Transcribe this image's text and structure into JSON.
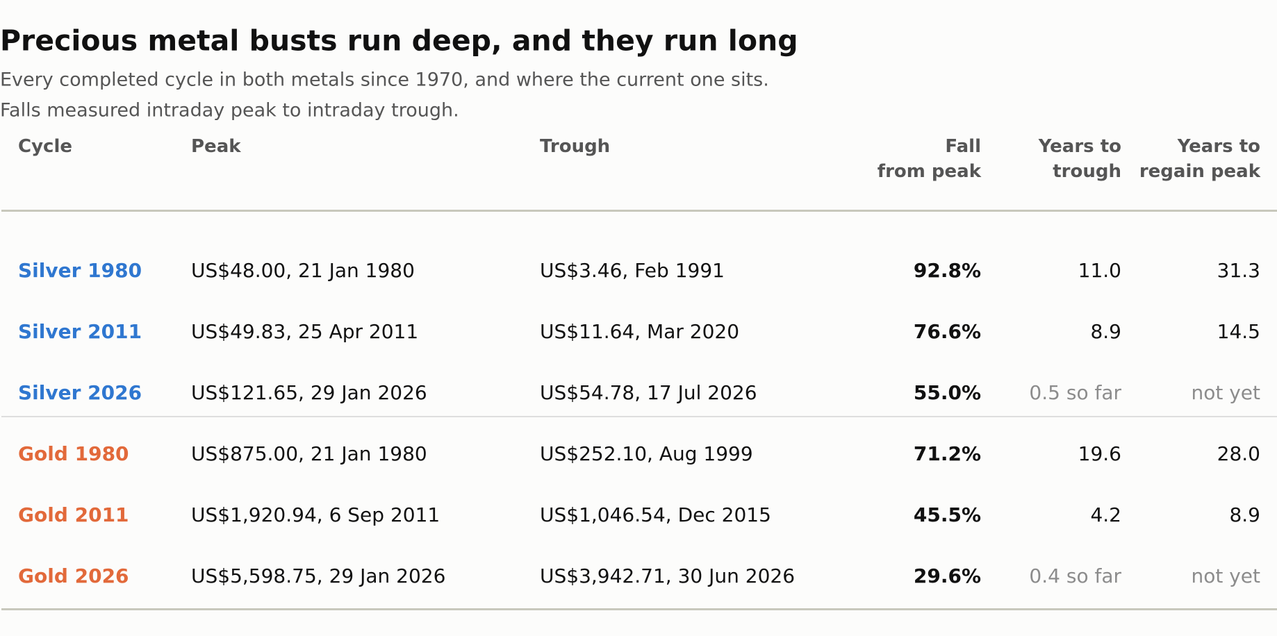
{
  "header": {
    "title": "Precious metal busts run deep, and they run long",
    "subtitle": [
      "Every completed cycle in both metals since 1970, and where the current one sits.",
      "Falls measured intraday peak to intraday trough."
    ]
  },
  "table": {
    "columns": [
      [
        "Cycle"
      ],
      [
        "Peak"
      ],
      [
        "Trough"
      ],
      [
        "Fall",
        "from peak"
      ],
      [
        "Years to",
        "trough"
      ],
      [
        "Years to",
        "regain peak"
      ]
    ],
    "groups": [
      {
        "color": "#2f77d0",
        "rows": [
          [
            "Silver 1980",
            "US$48.00, 21 Jan 1980",
            "US$3.46, Feb 1991",
            "92.8%",
            "11.0",
            "31.3"
          ],
          [
            "Silver 2011",
            "US$49.83, 25 Apr 2011",
            "US$11.64, Mar 2020",
            "76.6%",
            "8.9",
            "14.5"
          ],
          [
            "Silver 2026",
            "US$121.65, 29 Jan 2026",
            "US$54.78, 17 Jul 2026",
            "55.0%",
            "0.5 so far",
            "not yet"
          ]
        ]
      },
      {
        "color": "#e2693a",
        "rows": [
          [
            "Gold 1980",
            "US$875.00, 21 Jan 1980",
            "US$252.10, Aug 1999",
            "71.2%",
            "19.6",
            "28.0"
          ],
          [
            "Gold 2011",
            "US$1,920.94, 6 Sep 2011",
            "US$1,046.54, Dec 2015",
            "45.5%",
            "4.2",
            "8.9"
          ],
          [
            "Gold 2026",
            "US$5,598.75, 29 Jan 2026",
            "US$3,942.71, 30 Jun 2026",
            "29.6%",
            "0.4 so far",
            "not yet"
          ]
        ]
      }
    ]
  }
}
